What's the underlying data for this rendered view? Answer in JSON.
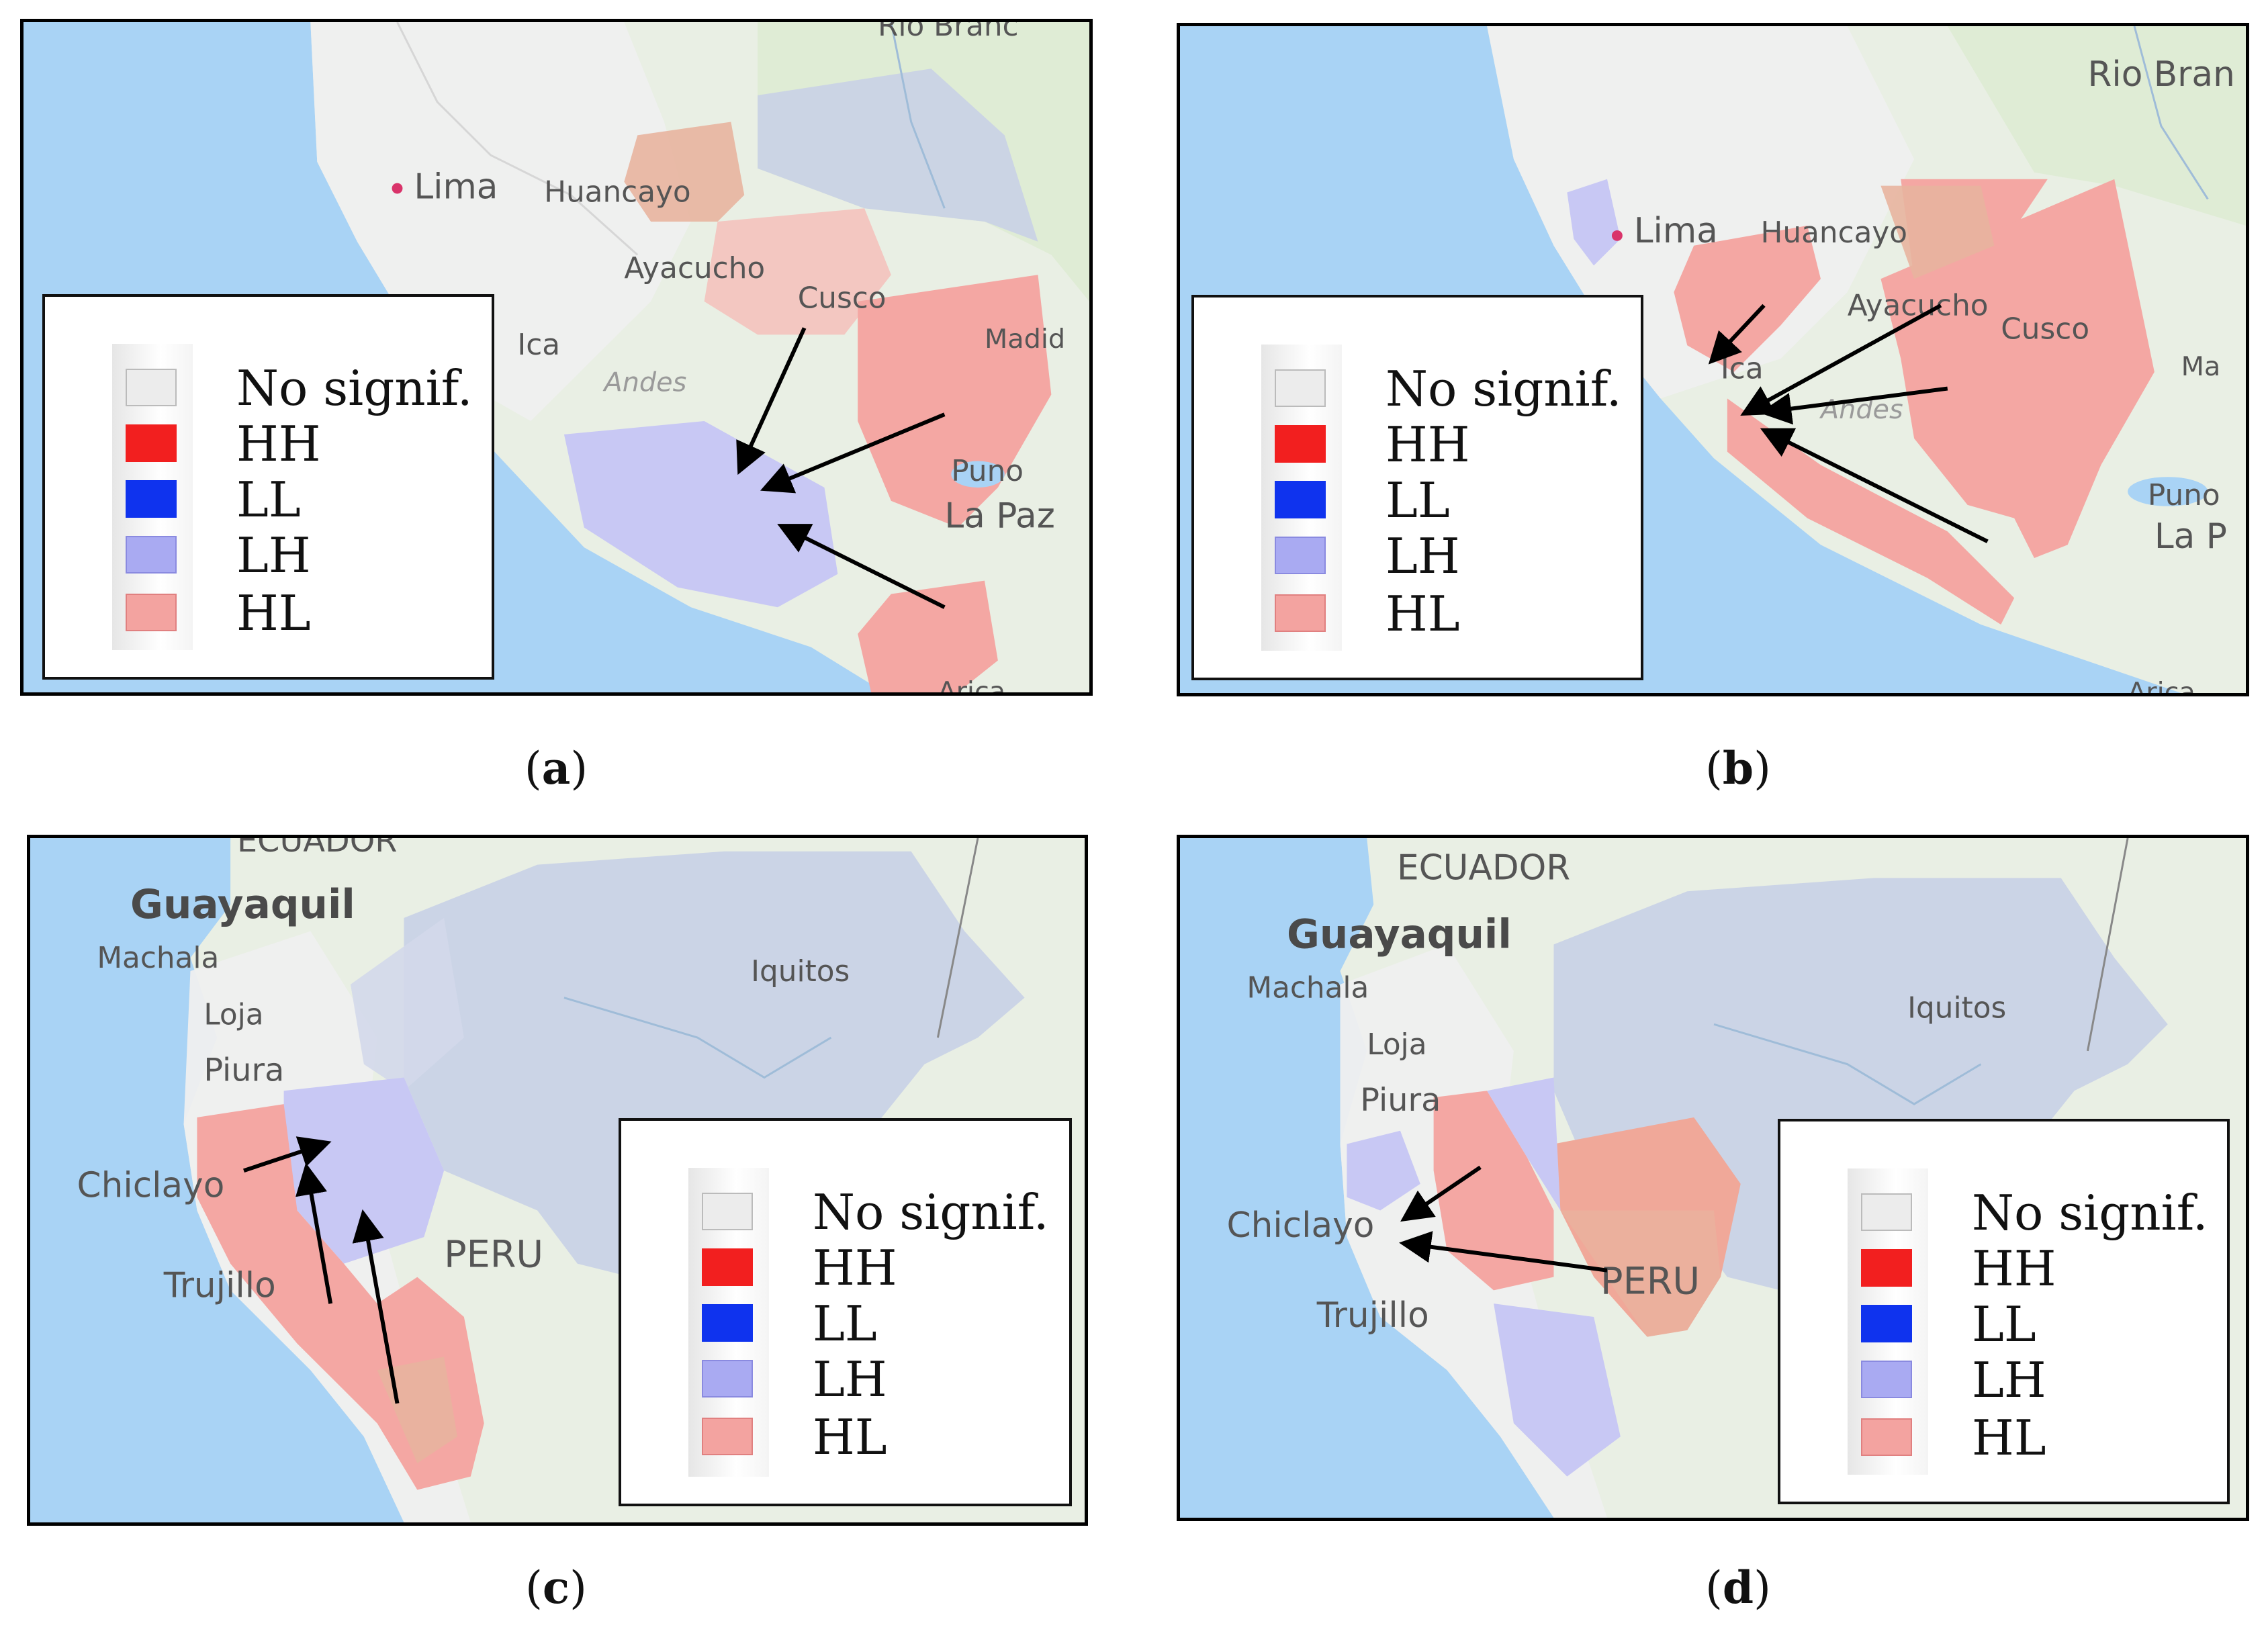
{
  "colors": {
    "ocean": "#a9d3f5",
    "land": "#e9efe4",
    "highland": "#ececec",
    "no_signif": "#ececec",
    "hh": "#f21f1f",
    "ll": "#0f33ee",
    "lh": "#a9aaf2",
    "hl": "#f3a3a0",
    "hl_fill": "#f4a7a3",
    "lh_fill": "#b8bff0"
  },
  "legend": {
    "items": [
      {
        "label": "No signif.",
        "color": "#ececec"
      },
      {
        "label": "HH",
        "color": "#f21f1f"
      },
      {
        "label": "LL",
        "color": "#0f33ee"
      },
      {
        "label": "LH",
        "color": "#a9aaf2"
      },
      {
        "label": "HL",
        "color": "#f3a3a0"
      }
    ]
  },
  "panels": [
    {
      "caption_letter": "a",
      "labels": {
        "lima": "Lima",
        "huancayo": "Huancayo",
        "ayacucho": "Ayacucho",
        "cusco": "Cusco",
        "ica": "Ica",
        "andes": "Andes",
        "madre": "Madid",
        "puno": "Puno",
        "lapaz": "La Paz",
        "rio_branco": "Rio Branc",
        "arica": "Arica"
      }
    },
    {
      "caption_letter": "b",
      "labels": {
        "rio_branco": "Rio Bran",
        "lima": "Lima",
        "huancayo": "Huancayo",
        "ayacucho": "Ayacucho",
        "cusco": "Cusco",
        "ica": "Ica",
        "andes": "Andes",
        "madre": "Ma",
        "puno": "Puno",
        "lapaz": "La P",
        "arica": "Arica"
      }
    },
    {
      "caption_letter": "c",
      "labels": {
        "ecuador": "ECUADOR",
        "guayaquil": "Guayaquil",
        "machala": "Machala",
        "loja": "Loja",
        "piura": "Piura",
        "iquitos": "Iquitos",
        "chiclayo": "Chiclayo",
        "trujillo": "Trujillo",
        "peru": "PERU"
      }
    },
    {
      "caption_letter": "d",
      "labels": {
        "ecuador": "ECUADOR",
        "guayaquil": "Guayaquil",
        "machala": "Machala",
        "loja": "Loja",
        "piura": "Piura",
        "iquitos": "Iquitos",
        "chiclayo": "Chiclayo",
        "trujillo": "Trujillo",
        "peru": "PERU"
      }
    }
  ]
}
